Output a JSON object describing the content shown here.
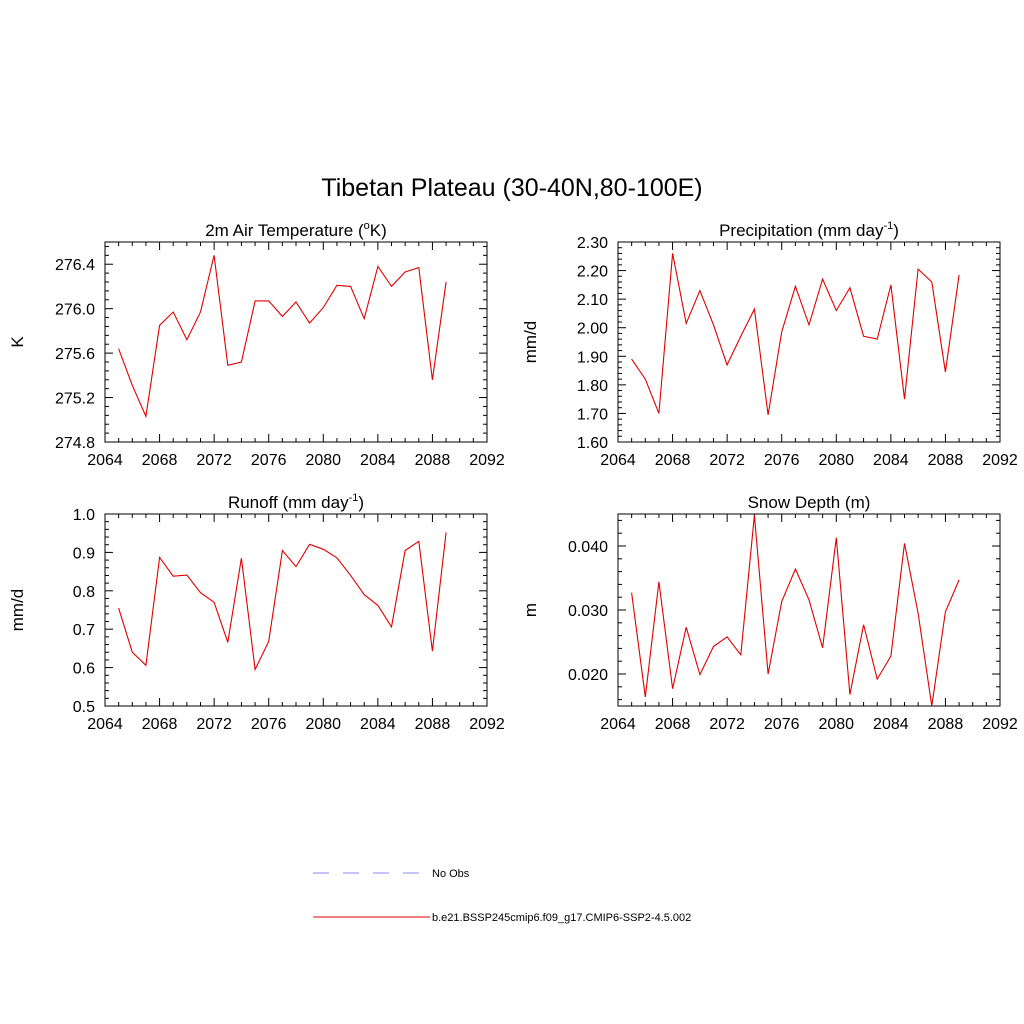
{
  "page": {
    "title": "Tibetan Plateau (30-40N,80-100E)"
  },
  "colors": {
    "model_line": "#e00000",
    "obs_line": "#a0a0f0",
    "axis": "#000000"
  },
  "legend": {
    "items": [
      {
        "label": "No Obs",
        "style": "dashed",
        "color": "#a0a0f0"
      },
      {
        "label": "b.e21.BSSP245cmip6.f09_g17.CMIP6-SSP2-4.5.002",
        "style": "solid",
        "color": "#e00000"
      }
    ]
  },
  "chart_data": [
    {
      "type": "line",
      "title": "2m Air Temperature (",
      "title_sup": "o",
      "title_suffix": "K)",
      "ylabel": "K",
      "xlim": [
        2064,
        2092
      ],
      "ylim": [
        274.8,
        276.6
      ],
      "xticks": [
        2064,
        2068,
        2072,
        2076,
        2080,
        2084,
        2088,
        2092
      ],
      "xtick_labels": [
        "2064",
        "2068",
        "2072",
        "2076",
        "2080",
        "2084",
        "2088",
        "2092"
      ],
      "yticks": [
        274.8,
        275.2,
        275.6,
        276.0,
        276.4
      ],
      "ytick_labels": [
        "274.8",
        "275.2",
        "275.6",
        "276.0",
        "276.4"
      ],
      "x": [
        2065,
        2066,
        2067,
        2068,
        2069,
        2070,
        2071,
        2072,
        2073,
        2074,
        2075,
        2076,
        2077,
        2078,
        2079,
        2080,
        2081,
        2082,
        2083,
        2084,
        2085,
        2086,
        2087,
        2088,
        2089
      ],
      "series": [
        {
          "values": [
            275.64,
            275.31,
            275.03,
            275.85,
            275.97,
            275.72,
            275.97,
            276.48,
            275.49,
            275.52,
            276.07,
            276.07,
            275.93,
            276.06,
            275.87,
            276.01,
            276.21,
            276.2,
            275.91,
            276.38,
            276.2,
            276.33,
            276.37,
            275.36,
            276.24
          ]
        }
      ]
    },
    {
      "type": "line",
      "title": "Precipitation (mm day",
      "title_sup": "-1",
      "title_suffix": ")",
      "ylabel": "mm/d",
      "xlim": [
        2064,
        2092
      ],
      "ylim": [
        1.6,
        2.3
      ],
      "xticks": [
        2064,
        2068,
        2072,
        2076,
        2080,
        2084,
        2088,
        2092
      ],
      "xtick_labels": [
        "2064",
        "2068",
        "2072",
        "2076",
        "2080",
        "2084",
        "2088",
        "2092"
      ],
      "yticks": [
        1.6,
        1.7,
        1.8,
        1.9,
        2.0,
        2.1,
        2.2,
        2.3
      ],
      "ytick_labels": [
        "1.60",
        "1.70",
        "1.80",
        "1.90",
        "2.00",
        "2.10",
        "2.20",
        "2.30"
      ],
      "x": [
        2065,
        2066,
        2067,
        2068,
        2069,
        2070,
        2071,
        2072,
        2073,
        2074,
        2075,
        2076,
        2077,
        2078,
        2079,
        2080,
        2081,
        2082,
        2083,
        2084,
        2085,
        2086,
        2087,
        2088,
        2089
      ],
      "series": [
        {
          "values": [
            1.89,
            1.82,
            1.7,
            2.26,
            2.015,
            2.13,
            2.01,
            1.87,
            1.97,
            2.065,
            1.695,
            1.985,
            2.145,
            2.01,
            2.17,
            2.06,
            2.14,
            1.97,
            1.96,
            2.15,
            1.75,
            2.205,
            2.16,
            1.845,
            2.185
          ]
        }
      ]
    },
    {
      "type": "line",
      "title": "Runoff (mm day",
      "title_sup": "-1",
      "title_suffix": ")",
      "ylabel": "mm/d",
      "xlim": [
        2064,
        2092
      ],
      "ylim": [
        0.5,
        1.0
      ],
      "xticks": [
        2064,
        2068,
        2072,
        2076,
        2080,
        2084,
        2088,
        2092
      ],
      "xtick_labels": [
        "2064",
        "2068",
        "2072",
        "2076",
        "2080",
        "2084",
        "2088",
        "2092"
      ],
      "yticks": [
        0.5,
        0.6,
        0.7,
        0.8,
        0.9,
        1.0
      ],
      "ytick_labels": [
        "0.5",
        "0.6",
        "0.7",
        "0.8",
        "0.9",
        "1.0"
      ],
      "x": [
        2065,
        2066,
        2067,
        2068,
        2069,
        2070,
        2071,
        2072,
        2073,
        2074,
        2075,
        2076,
        2077,
        2078,
        2079,
        2080,
        2081,
        2082,
        2083,
        2084,
        2085,
        2086,
        2087,
        2088,
        2089
      ],
      "series": [
        {
          "values": [
            0.755,
            0.64,
            0.606,
            0.887,
            0.838,
            0.841,
            0.795,
            0.77,
            0.666,
            0.885,
            0.595,
            0.668,
            0.905,
            0.863,
            0.921,
            0.908,
            0.886,
            0.84,
            0.79,
            0.762,
            0.706,
            0.905,
            0.929,
            0.643,
            0.952
          ]
        }
      ]
    },
    {
      "type": "line",
      "title": "Snow Depth (m)",
      "title_sup": "",
      "title_suffix": "",
      "ylabel": "m",
      "xlim": [
        2064,
        2092
      ],
      "ylim": [
        0.015,
        0.045
      ],
      "xticks": [
        2064,
        2068,
        2072,
        2076,
        2080,
        2084,
        2088,
        2092
      ],
      "xtick_labels": [
        "2064",
        "2068",
        "2072",
        "2076",
        "2080",
        "2084",
        "2088",
        "2092"
      ],
      "yticks": [
        0.02,
        0.03,
        0.04
      ],
      "ytick_labels": [
        "0.020",
        "0.030",
        "0.040"
      ],
      "x": [
        2065,
        2066,
        2067,
        2068,
        2069,
        2070,
        2071,
        2072,
        2073,
        2074,
        2075,
        2076,
        2077,
        2078,
        2079,
        2080,
        2081,
        2082,
        2083,
        2084,
        2085,
        2086,
        2087,
        2088,
        2089
      ],
      "series": [
        {
          "values": [
            0.0327,
            0.0164,
            0.0344,
            0.0177,
            0.0273,
            0.0199,
            0.0243,
            0.0258,
            0.023,
            0.0448,
            0.02,
            0.0313,
            0.0364,
            0.0316,
            0.0241,
            0.0413,
            0.0168,
            0.0277,
            0.0192,
            0.0228,
            0.0404,
            0.0295,
            0.015,
            0.0297,
            0.0347
          ]
        }
      ]
    }
  ]
}
